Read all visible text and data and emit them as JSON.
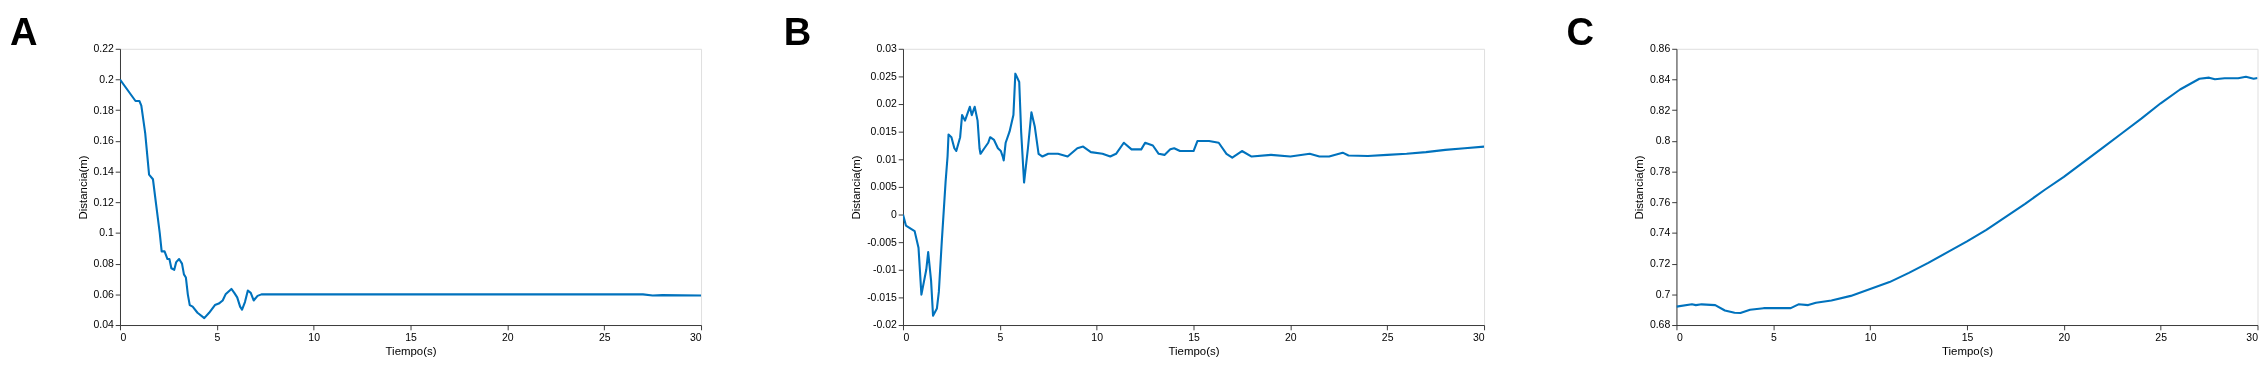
{
  "chart_data": [
    {
      "type": "line",
      "title": "A",
      "xlabel": "Tiempo(s)",
      "ylabel": "Distancia(m)",
      "xlim": [
        0,
        30
      ],
      "ylim": [
        0.04,
        0.22
      ],
      "xticks": [
        0,
        5,
        10,
        15,
        20,
        25,
        30
      ],
      "yticks": [
        0.04,
        0.06,
        0.08,
        0.1,
        0.12,
        0.14,
        0.16,
        0.18,
        0.2,
        0.22
      ],
      "x": [
        0,
        0.8,
        1.0,
        1.1,
        1.3,
        1.5,
        1.7,
        1.85,
        2.05,
        2.15,
        2.3,
        2.45,
        2.55,
        2.65,
        2.8,
        2.9,
        3.05,
        3.2,
        3.3,
        3.4,
        3.5,
        3.6,
        3.75,
        4.0,
        4.35,
        4.6,
        4.9,
        5.1,
        5.3,
        5.45,
        5.75,
        5.9,
        6.05,
        6.2,
        6.3,
        6.45,
        6.6,
        6.75,
        6.9,
        7.1,
        7.3,
        10,
        15,
        20,
        25,
        27,
        27.5,
        28,
        30
      ],
      "series": [
        {
          "color": "#0072bd",
          "values": [
            0.2,
            0.186,
            0.186,
            0.183,
            0.165,
            0.138,
            0.135,
            0.12,
            0.1,
            0.088,
            0.088,
            0.083,
            0.083,
            0.077,
            0.076,
            0.081,
            0.083,
            0.08,
            0.073,
            0.071,
            0.06,
            0.053,
            0.052,
            0.048,
            0.0445,
            0.048,
            0.053,
            0.054,
            0.056,
            0.06,
            0.0635,
            0.061,
            0.058,
            0.052,
            0.05,
            0.055,
            0.0625,
            0.061,
            0.056,
            0.059,
            0.06,
            0.06,
            0.06,
            0.06,
            0.06,
            0.06,
            0.0593,
            0.0595,
            0.0593
          ]
        }
      ]
    },
    {
      "type": "line",
      "title": "B",
      "xlabel": "Tiempo(s)",
      "ylabel": "Distancia(m)",
      "xlim": [
        0,
        30
      ],
      "ylim": [
        -0.02,
        0.03
      ],
      "xticks": [
        0,
        5,
        10,
        15,
        20,
        25,
        30
      ],
      "yticks": [
        -0.02,
        -0.015,
        -0.01,
        -0.005,
        0,
        0.005,
        0.01,
        0.015,
        0.02,
        0.025,
        0.03
      ],
      "x": [
        0,
        0.15,
        0.6,
        0.8,
        0.95,
        1.2,
        1.3,
        1.45,
        1.55,
        1.75,
        1.85,
        2.0,
        2.2,
        2.3,
        2.35,
        2.5,
        2.65,
        2.75,
        2.95,
        3.05,
        3.2,
        3.45,
        3.55,
        3.7,
        3.85,
        3.95,
        4.0,
        4.2,
        4.4,
        4.5,
        4.7,
        4.9,
        5.05,
        5.15,
        5.2,
        5.3,
        5.5,
        5.7,
        5.8,
        6.0,
        6.1,
        6.25,
        6.45,
        6.63,
        6.8,
        7.0,
        7.2,
        7.5,
        8,
        8.5,
        9,
        9.3,
        9.7,
        10.3,
        10.7,
        11.0,
        11.4,
        11.8,
        12.3,
        12.5,
        12.9,
        13.2,
        13.5,
        13.8,
        14.0,
        14.3,
        15.0,
        15.2,
        15.8,
        16.3,
        16.7,
        17.0,
        17.5,
        18,
        19,
        20,
        21,
        21.5,
        22,
        22.7,
        23,
        24,
        25,
        26,
        27,
        28,
        29,
        30
      ],
      "series": [
        {
          "color": "#0072bd",
          "values": [
            0,
            -0.002,
            -0.003,
            -0.006,
            -0.0145,
            -0.01,
            -0.0068,
            -0.012,
            -0.0183,
            -0.017,
            -0.014,
            -0.005,
            0.006,
            0.0105,
            0.0145,
            0.014,
            0.012,
            0.0115,
            0.014,
            0.018,
            0.017,
            0.0195,
            0.018,
            0.0195,
            0.017,
            0.012,
            0.011,
            0.012,
            0.013,
            0.014,
            0.0135,
            0.012,
            0.0115,
            0.0105,
            0.0098,
            0.013,
            0.015,
            0.018,
            0.0255,
            0.024,
            0.015,
            0.0058,
            0.012,
            0.0185,
            0.016,
            0.011,
            0.0105,
            0.011,
            0.011,
            0.0105,
            0.012,
            0.0123,
            0.0113,
            0.011,
            0.0105,
            0.011,
            0.013,
            0.0118,
            0.0118,
            0.013,
            0.0125,
            0.011,
            0.0108,
            0.0118,
            0.012,
            0.0115,
            0.0115,
            0.0133,
            0.0133,
            0.013,
            0.011,
            0.0103,
            0.0115,
            0.0105,
            0.0108,
            0.0105,
            0.011,
            0.0105,
            0.0105,
            0.0112,
            0.0107,
            0.0106,
            0.0108,
            0.011,
            0.0113,
            0.0117,
            0.012,
            0.0123
          ]
        }
      ]
    },
    {
      "type": "line",
      "title": "C",
      "xlabel": "Tiempo(s)",
      "ylabel": "Distancia(m)",
      "xlim": [
        0,
        30
      ],
      "ylim": [
        0.68,
        0.86
      ],
      "xticks": [
        0,
        5,
        10,
        15,
        20,
        25,
        30
      ],
      "yticks": [
        0.68,
        0.7,
        0.72,
        0.74,
        0.76,
        0.78,
        0.8,
        0.82,
        0.84,
        0.86
      ],
      "x": [
        0,
        0.8,
        1.0,
        1.3,
        2.0,
        2.5,
        3.0,
        3.3,
        3.8,
        4.5,
        5.0,
        5.9,
        6.3,
        6.8,
        7.2,
        8,
        9,
        10,
        11,
        12,
        13,
        14,
        15,
        16,
        17,
        18,
        19,
        20,
        21,
        22,
        23,
        24,
        25,
        26,
        27,
        27.5,
        27.8,
        28.3,
        29,
        29.4,
        29.8,
        30
      ],
      "series": [
        {
          "color": "#0072bd",
          "values": [
            0.692,
            0.6935,
            0.693,
            0.6935,
            0.693,
            0.6895,
            0.688,
            0.6878,
            0.69,
            0.691,
            0.691,
            0.691,
            0.6935,
            0.693,
            0.6945,
            0.696,
            0.699,
            0.7035,
            0.708,
            0.714,
            0.7205,
            0.7275,
            0.7345,
            0.742,
            0.7505,
            0.759,
            0.768,
            0.7765,
            0.786,
            0.7955,
            0.805,
            0.8145,
            0.8245,
            0.8335,
            0.8405,
            0.8412,
            0.8402,
            0.8408,
            0.8408,
            0.8418,
            0.8405,
            0.841
          ]
        }
      ]
    }
  ]
}
